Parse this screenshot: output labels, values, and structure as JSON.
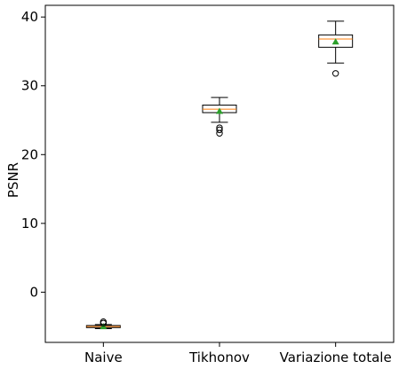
{
  "chart_data": {
    "type": "box",
    "title": "",
    "xlabel": "",
    "ylabel": "PSNR",
    "ylim": [
      -7.3,
      41.7
    ],
    "yticks": [
      0,
      10,
      20,
      30,
      40
    ],
    "grid": false,
    "categories": [
      "Naive",
      "Tikhonov",
      "Variazione totale"
    ],
    "boxes": [
      {
        "category": "Naive",
        "whisker_low": -5.3,
        "q1": -5.15,
        "median": -5.0,
        "q3": -4.85,
        "whisker_high": -4.7,
        "mean": -5.0,
        "outliers": [
          -4.3,
          -4.5
        ]
      },
      {
        "category": "Tikhonov",
        "whisker_low": 24.7,
        "q1": 26.1,
        "median": 26.6,
        "q3": 27.2,
        "whisker_high": 28.3,
        "mean": 26.3,
        "outliers": [
          23.9,
          23.6,
          23.1
        ]
      },
      {
        "category": "Variazione totale",
        "whisker_low": 33.3,
        "q1": 35.6,
        "median": 36.8,
        "q3": 37.4,
        "whisker_high": 39.4,
        "mean": 36.4,
        "outliers": [
          31.8
        ]
      }
    ],
    "colors": {
      "box": "#000000",
      "median": "#ff7f0e",
      "mean": "#2ca02c"
    }
  }
}
